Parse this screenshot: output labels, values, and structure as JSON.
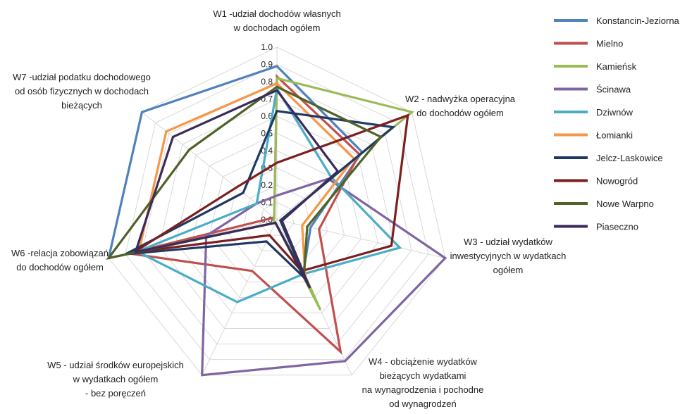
{
  "chart_data": {
    "type": "radar",
    "title": "",
    "rlim": [
      0,
      1.0
    ],
    "ticks": [
      "0.0",
      "0.1",
      "0.2",
      "0.3",
      "0.4",
      "0.5",
      "0.6",
      "0.7",
      "0.8",
      "0.9",
      "1.0"
    ],
    "grid": true,
    "legend_position": "right",
    "axes": [
      [
        "W1 -udział dochodów własnych",
        "w dochodach ogółem"
      ],
      [
        "W2 - nadwyżka operacyjna",
        "do dochodów ogółem"
      ],
      [
        "W3 - udział wydatków",
        "inwestycyjnych w wydatkach",
        "ogółem"
      ],
      [
        "W4 -  obciążenie wydatków",
        "bieżących wydatkami",
        "na wynagrodzenia i pochodne",
        "od wynagrodzeń"
      ],
      [
        "W5 - udział środków europejskich",
        "w wydatkach ogółem",
        "- bez poręczeń"
      ],
      [
        "W6 -relacja zobowiązań",
        "do dochodów ogółem"
      ],
      [
        "W7 -udział podatku dochodowego",
        "od osób fizycznych w dochodach",
        "bieżących"
      ]
    ],
    "series": [
      {
        "name": "Konstancin-Jeziorna",
        "color": "#4F81BD",
        "values": [
          0.89,
          0.63,
          0.2,
          0.35,
          0.02,
          1.0,
          1.0
        ]
      },
      {
        "name": "Mielno",
        "color": "#C0504D",
        "values": [
          0.83,
          0.61,
          0.25,
          0.85,
          0.33,
          0.88,
          0.02
        ]
      },
      {
        "name": "Kamieńsk",
        "color": "#9BBB59",
        "values": [
          0.82,
          1.0,
          0.02,
          0.58,
          0.02,
          0.02,
          0.02
        ]
      },
      {
        "name": "Ścinawa",
        "color": "#8064A2",
        "values": [
          0.14,
          0.38,
          1.0,
          0.91,
          1.0,
          0.42,
          0.15
        ]
      },
      {
        "name": "Dziwnów",
        "color": "#4BACC6",
        "values": [
          0.76,
          0.4,
          0.73,
          0.35,
          0.53,
          0.83,
          0.15
        ]
      },
      {
        "name": "Łomianki",
        "color": "#F79646",
        "values": [
          0.79,
          0.57,
          0.15,
          0.38,
          0.02,
          0.82,
          0.82
        ]
      },
      {
        "name": "Jelcz-Laskowice",
        "color": "#1F3864",
        "values": [
          0.63,
          0.86,
          0.02,
          0.38,
          0.14,
          0.9,
          0.25
        ]
      },
      {
        "name": "Nowogród",
        "color": "#7B1F1F",
        "values": [
          0.33,
          0.97,
          0.68,
          0.33,
          0.1,
          0.85,
          0.3
        ]
      },
      {
        "name": "Nowe Warpno",
        "color": "#4F6228",
        "values": [
          0.77,
          0.77,
          0.18,
          0.36,
          0.02,
          1.0,
          0.65
        ]
      },
      {
        "name": "Piaseczno",
        "color": "#3B2B5A",
        "values": [
          0.75,
          0.45,
          0.03,
          0.44,
          0.02,
          0.84,
          0.77
        ]
      }
    ]
  }
}
